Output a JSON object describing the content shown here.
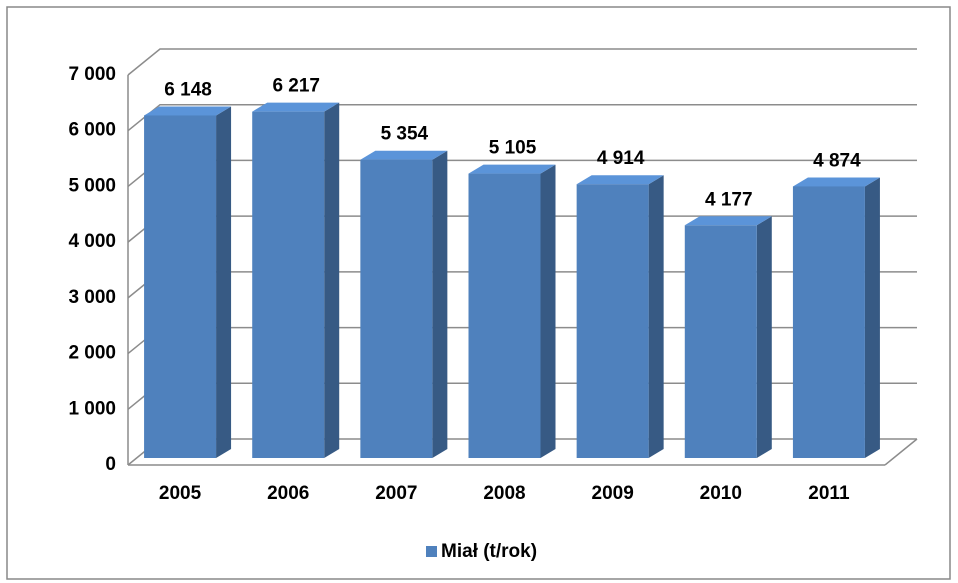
{
  "chart_data": {
    "type": "bar3d",
    "categories": [
      "2005",
      "2006",
      "2007",
      "2008",
      "2009",
      "2010",
      "2011"
    ],
    "series": [
      {
        "name": "Miał (t/rok)",
        "color": "#4f81bd",
        "values": [
          6148,
          6217,
          5354,
          5105,
          4914,
          4177,
          4874
        ],
        "value_labels": [
          "6 148",
          "6 217",
          "5 354",
          "5 105",
          "4 914",
          "4 177",
          "4 874"
        ]
      }
    ],
    "ylim": [
      0,
      7000
    ],
    "yticks": [
      {
        "value": 0,
        "label": "0"
      },
      {
        "value": 1000,
        "label": "1 000"
      },
      {
        "value": 2000,
        "label": "2 000"
      },
      {
        "value": 3000,
        "label": "3 000"
      },
      {
        "value": 4000,
        "label": "4 000"
      },
      {
        "value": 5000,
        "label": "5 000"
      },
      {
        "value": 6000,
        "label": "6 000"
      },
      {
        "value": 7000,
        "label": "7 000"
      }
    ],
    "grid": true,
    "legend": "bottom"
  }
}
